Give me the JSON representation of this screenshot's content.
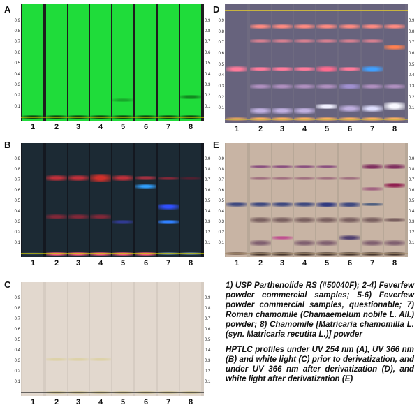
{
  "panels": [
    {
      "letter": "A",
      "id": "uv254",
      "bg": "#1e1e1e",
      "lane_color": "#1fdc3a",
      "front_color": "#b8b800",
      "bands": [
        [
          {
            "rf": 0.0,
            "color": "#0a3a0a",
            "w": 0.04
          }
        ],
        [
          {
            "rf": 0.0,
            "color": "#0a3a0a",
            "w": 0.04
          }
        ],
        [
          {
            "rf": 0.0,
            "color": "#0a3a0a",
            "w": 0.04
          }
        ],
        [
          {
            "rf": 0.0,
            "color": "#0a3a0a",
            "w": 0.04
          }
        ],
        [
          {
            "rf": 0.0,
            "color": "#0a3a0a",
            "w": 0.04
          },
          {
            "rf": 0.16,
            "color": "#17a82a",
            "w": 0.03
          }
        ],
        [
          {
            "rf": 0.0,
            "color": "#0a3a0a",
            "w": 0.04
          }
        ],
        [
          {
            "rf": 0.0,
            "color": "#0a3a0a",
            "w": 0.04
          }
        ],
        [
          {
            "rf": 0.0,
            "color": "#0a3a0a",
            "w": 0.04
          },
          {
            "rf": 0.19,
            "color": "#128a20",
            "w": 0.035
          }
        ]
      ]
    },
    {
      "letter": "D",
      "id": "uv366-deriv",
      "bg": "#6e6a80",
      "lane_color": "#67637d",
      "front_color": "#c8b440",
      "bands": [
        [
          {
            "rf": 0.46,
            "color": "#ff7a9a",
            "w": 0.05
          },
          {
            "rf": 0.0,
            "color": "#e0a060",
            "w": 0.03
          }
        ],
        [
          {
            "rf": 0.85,
            "color": "#ff8a80",
            "w": 0.04
          },
          {
            "rf": 0.72,
            "color": "#d88090",
            "w": 0.03
          },
          {
            "rf": 0.46,
            "color": "#ff7a9a",
            "w": 0.04
          },
          {
            "rf": 0.3,
            "color": "#b090c0",
            "w": 0.04
          },
          {
            "rf": 0.08,
            "color": "#c0b0e0",
            "w": 0.05
          },
          {
            "rf": 0.0,
            "color": "#ffb060",
            "w": 0.03
          }
        ],
        [
          {
            "rf": 0.85,
            "color": "#ff8a80",
            "w": 0.04
          },
          {
            "rf": 0.72,
            "color": "#d88090",
            "w": 0.03
          },
          {
            "rf": 0.46,
            "color": "#ff7a9a",
            "w": 0.04
          },
          {
            "rf": 0.3,
            "color": "#b090c0",
            "w": 0.04
          },
          {
            "rf": 0.08,
            "color": "#c0b0e0",
            "w": 0.05
          },
          {
            "rf": 0.0,
            "color": "#ffb060",
            "w": 0.03
          }
        ],
        [
          {
            "rf": 0.85,
            "color": "#ff8a80",
            "w": 0.04
          },
          {
            "rf": 0.72,
            "color": "#d88090",
            "w": 0.03
          },
          {
            "rf": 0.46,
            "color": "#ff7a9a",
            "w": 0.04
          },
          {
            "rf": 0.3,
            "color": "#b090c0",
            "w": 0.04
          },
          {
            "rf": 0.08,
            "color": "#c0b0e0",
            "w": 0.05
          },
          {
            "rf": 0.0,
            "color": "#ffb060",
            "w": 0.03
          }
        ],
        [
          {
            "rf": 0.85,
            "color": "#ff8a80",
            "w": 0.04
          },
          {
            "rf": 0.72,
            "color": "#d88090",
            "w": 0.03
          },
          {
            "rf": 0.46,
            "color": "#ff6a8e",
            "w": 0.05
          },
          {
            "rf": 0.3,
            "color": "#b090c0",
            "w": 0.04
          },
          {
            "rf": 0.12,
            "color": "#f0f0ff",
            "w": 0.04
          },
          {
            "rf": 0.0,
            "color": "#ffb060",
            "w": 0.03
          }
        ],
        [
          {
            "rf": 0.85,
            "color": "#ff8a80",
            "w": 0.04
          },
          {
            "rf": 0.72,
            "color": "#d88090",
            "w": 0.03
          },
          {
            "rf": 0.46,
            "color": "#ff7a9a",
            "w": 0.04
          },
          {
            "rf": 0.3,
            "color": "#a090d0",
            "w": 0.05
          },
          {
            "rf": 0.1,
            "color": "#c0b0e0",
            "w": 0.05
          },
          {
            "rf": 0.0,
            "color": "#ffb060",
            "w": 0.03
          }
        ],
        [
          {
            "rf": 0.85,
            "color": "#ff8a80",
            "w": 0.04
          },
          {
            "rf": 0.72,
            "color": "#d88090",
            "w": 0.03
          },
          {
            "rf": 0.46,
            "color": "#40a0ff",
            "w": 0.05
          },
          {
            "rf": 0.3,
            "color": "#b090c0",
            "w": 0.04
          },
          {
            "rf": 0.1,
            "color": "#e0e0ff",
            "w": 0.05
          },
          {
            "rf": 0.0,
            "color": "#ffb060",
            "w": 0.03
          }
        ],
        [
          {
            "rf": 0.85,
            "color": "#ff8a80",
            "w": 0.04
          },
          {
            "rf": 0.66,
            "color": "#ff8050",
            "w": 0.04
          },
          {
            "rf": 0.3,
            "color": "#b090c0",
            "w": 0.04
          },
          {
            "rf": 0.12,
            "color": "#f8f8ff",
            "w": 0.07
          },
          {
            "rf": 0.0,
            "color": "#ffb060",
            "w": 0.03
          }
        ]
      ]
    },
    {
      "letter": "B",
      "id": "uv366",
      "bg": "#141820",
      "lane_color": "#1c2a34",
      "front_color": "#c8c800",
      "bands": [
        [
          {
            "rf": 0.0,
            "color": "#30405a",
            "w": 0.02
          }
        ],
        [
          {
            "rf": 0.72,
            "color": "#c0303a",
            "w": 0.05
          },
          {
            "rf": 0.35,
            "color": "#802838",
            "w": 0.04
          },
          {
            "rf": 0.0,
            "color": "#ff6080",
            "w": 0.03
          }
        ],
        [
          {
            "rf": 0.72,
            "color": "#c0303a",
            "w": 0.05
          },
          {
            "rf": 0.35,
            "color": "#802838",
            "w": 0.04
          },
          {
            "rf": 0.0,
            "color": "#ff6080",
            "w": 0.03
          }
        ],
        [
          {
            "rf": 0.72,
            "color": "#d0302a",
            "w": 0.07
          },
          {
            "rf": 0.35,
            "color": "#802838",
            "w": 0.04
          },
          {
            "rf": 0.0,
            "color": "#ff6080",
            "w": 0.03
          }
        ],
        [
          {
            "rf": 0.72,
            "color": "#c0303a",
            "w": 0.05
          },
          {
            "rf": 0.3,
            "color": "#303a90",
            "w": 0.04
          },
          {
            "rf": 0.0,
            "color": "#ff6080",
            "w": 0.03
          }
        ],
        [
          {
            "rf": 0.72,
            "color": "#a03040",
            "w": 0.04
          },
          {
            "rf": 0.64,
            "color": "#30a0ff",
            "w": 0.04
          },
          {
            "rf": 0.0,
            "color": "#ff6080",
            "w": 0.03
          }
        ],
        [
          {
            "rf": 0.72,
            "color": "#802838",
            "w": 0.03
          },
          {
            "rf": 0.45,
            "color": "#3050ff",
            "w": 0.05
          },
          {
            "rf": 0.3,
            "color": "#3080ff",
            "w": 0.04
          },
          {
            "rf": 0.0,
            "color": "#6080a0",
            "w": 0.02
          }
        ],
        [
          {
            "rf": 0.72,
            "color": "#502030",
            "w": 0.03
          },
          {
            "rf": 0.0,
            "color": "#6080a0",
            "w": 0.02
          }
        ]
      ]
    },
    {
      "letter": "E",
      "id": "white-deriv",
      "bg": "#b8a898",
      "lane_color": "#c8b4a4",
      "front_color": "#a89070",
      "bands": [
        [
          {
            "rf": 0.47,
            "color": "#404a80",
            "w": 0.04
          },
          {
            "rf": 0.0,
            "color": "#6a5040",
            "w": 0.02
          }
        ],
        [
          {
            "rf": 0.83,
            "color": "#8a5080",
            "w": 0.03
          },
          {
            "rf": 0.72,
            "color": "#a07080",
            "w": 0.03
          },
          {
            "rf": 0.47,
            "color": "#404a80",
            "w": 0.04
          },
          {
            "rf": 0.32,
            "color": "#7a6060",
            "w": 0.05
          },
          {
            "rf": 0.1,
            "color": "#806070",
            "w": 0.05
          },
          {
            "rf": 0.0,
            "color": "#403028",
            "w": 0.03
          }
        ],
        [
          {
            "rf": 0.83,
            "color": "#8a5080",
            "w": 0.03
          },
          {
            "rf": 0.72,
            "color": "#a07080",
            "w": 0.03
          },
          {
            "rf": 0.47,
            "color": "#404a80",
            "w": 0.04
          },
          {
            "rf": 0.32,
            "color": "#7a6060",
            "w": 0.05
          },
          {
            "rf": 0.15,
            "color": "#c05090",
            "w": 0.03
          },
          {
            "rf": 0.0,
            "color": "#403028",
            "w": 0.03
          }
        ],
        [
          {
            "rf": 0.83,
            "color": "#8a5080",
            "w": 0.03
          },
          {
            "rf": 0.72,
            "color": "#a07080",
            "w": 0.03
          },
          {
            "rf": 0.47,
            "color": "#404a80",
            "w": 0.04
          },
          {
            "rf": 0.32,
            "color": "#7a6060",
            "w": 0.05
          },
          {
            "rf": 0.1,
            "color": "#806070",
            "w": 0.05
          },
          {
            "rf": 0.0,
            "color": "#403028",
            "w": 0.03
          }
        ],
        [
          {
            "rf": 0.83,
            "color": "#8a5080",
            "w": 0.03
          },
          {
            "rf": 0.72,
            "color": "#a07080",
            "w": 0.03
          },
          {
            "rf": 0.47,
            "color": "#303a80",
            "w": 0.05
          },
          {
            "rf": 0.32,
            "color": "#7a6060",
            "w": 0.05
          },
          {
            "rf": 0.1,
            "color": "#806070",
            "w": 0.05
          },
          {
            "rf": 0.0,
            "color": "#403028",
            "w": 0.03
          }
        ],
        [
          {
            "rf": 0.72,
            "color": "#a07080",
            "w": 0.03
          },
          {
            "rf": 0.47,
            "color": "#404a80",
            "w": 0.05
          },
          {
            "rf": 0.32,
            "color": "#7a6060",
            "w": 0.05
          },
          {
            "rf": 0.15,
            "color": "#504070",
            "w": 0.04
          },
          {
            "rf": 0.0,
            "color": "#403028",
            "w": 0.03
          }
        ],
        [
          {
            "rf": 0.83,
            "color": "#803060",
            "w": 0.04
          },
          {
            "rf": 0.62,
            "color": "#a06080",
            "w": 0.03
          },
          {
            "rf": 0.47,
            "color": "#506080",
            "w": 0.03
          },
          {
            "rf": 0.32,
            "color": "#7a6060",
            "w": 0.05
          },
          {
            "rf": 0.1,
            "color": "#806070",
            "w": 0.05
          },
          {
            "rf": 0.0,
            "color": "#403028",
            "w": 0.03
          }
        ],
        [
          {
            "rf": 0.83,
            "color": "#803060",
            "w": 0.04
          },
          {
            "rf": 0.65,
            "color": "#902050",
            "w": 0.04
          },
          {
            "rf": 0.32,
            "color": "#7a6060",
            "w": 0.04
          },
          {
            "rf": 0.1,
            "color": "#806070",
            "w": 0.05
          },
          {
            "rf": 0.0,
            "color": "#403028",
            "w": 0.03
          }
        ]
      ]
    },
    {
      "letter": "C",
      "id": "white",
      "bg": "#d6ccc2",
      "lane_color": "#e2d8ce",
      "front_color": "#303030",
      "bands": [
        [],
        [
          {
            "rf": 0.32,
            "color": "#ddd2a8",
            "w": 0.03
          },
          {
            "rf": 0.0,
            "color": "#c8bc88",
            "w": 0.02
          }
        ],
        [
          {
            "rf": 0.32,
            "color": "#ddd2a8",
            "w": 0.03
          },
          {
            "rf": 0.0,
            "color": "#c8bc88",
            "w": 0.02
          }
        ],
        [
          {
            "rf": 0.32,
            "color": "#ddd2a8",
            "w": 0.03
          },
          {
            "rf": 0.0,
            "color": "#c8bc88",
            "w": 0.02
          }
        ],
        [
          {
            "rf": 0.0,
            "color": "#c8bc88",
            "w": 0.02
          }
        ],
        [
          {
            "rf": 0.0,
            "color": "#c8bc88",
            "w": 0.02
          }
        ],
        [
          {
            "rf": 0.0,
            "color": "#c8bc88",
            "w": 0.02
          }
        ],
        [
          {
            "rf": 0.0,
            "color": "#c8bc88",
            "w": 0.02
          }
        ]
      ]
    }
  ],
  "lane_numbers": [
    "1",
    "2",
    "3",
    "4",
    "5",
    "6",
    "7",
    "8"
  ],
  "rf_ticks": [
    "0.9",
    "0.8",
    "0.7",
    "0.6",
    "0.5",
    "0.4",
    "0.3",
    "0.2",
    "0.1"
  ],
  "caption": {
    "legend": "1) USP Parthenolide RS (#50040F); 2-4) Feverfew powder commercial samples; 5-6) Feverfew powder commercial samples, questionable; 7) Roman chamomile (Chamaemelum nobile L. All.) powder; 8) Chamomile [Matricaria chamomilla L. (syn. Matricaria recutita L.)] powder",
    "description": "HPTLC profiles under UV 254 nm (A), UV 366 nm (B) and white light (C) prior to derivatization, and under UV 366 nm after derivatization (D), and white light after derivatization (E)"
  }
}
